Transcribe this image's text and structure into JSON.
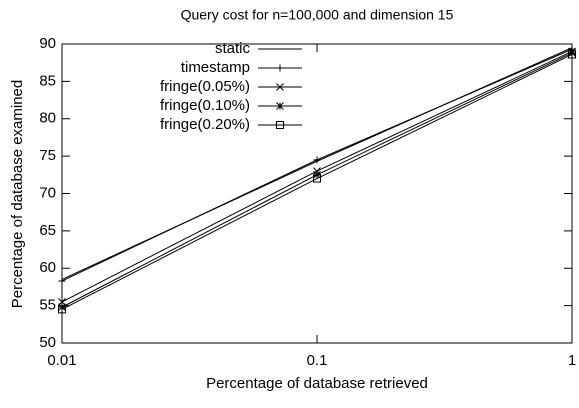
{
  "chart_data": {
    "type": "line",
    "title": "Query cost for n=100,000 and dimension 15",
    "x_label": "Percentage of database retrieved",
    "y_label": "Percentage of database examined",
    "x": [
      0.01,
      0.1,
      1
    ],
    "xscale": "log",
    "xlim": [
      0.01,
      1
    ],
    "xticks": [
      0.01,
      0.1,
      1
    ],
    "ylim": [
      50,
      90
    ],
    "yticks": [
      50,
      55,
      60,
      65,
      70,
      75,
      80,
      85,
      90
    ],
    "legend": "top-left",
    "series": [
      {
        "name": "static",
        "color": "#000000",
        "marker": "none",
        "values": [
          58.5,
          74.3,
          89.5
        ]
      },
      {
        "name": "timestamp",
        "color": "#000000",
        "marker": "plus",
        "values": [
          58.3,
          74.5,
          89.3
        ]
      },
      {
        "name": "fringe(0.05%)",
        "color": "#000000",
        "marker": "cross",
        "values": [
          55.5,
          73.0,
          89.0
        ]
      },
      {
        "name": "fringe(0.10%)",
        "color": "#000000",
        "marker": "star",
        "values": [
          54.8,
          72.5,
          88.8
        ]
      },
      {
        "name": "fringe(0.20%)",
        "color": "#000000",
        "marker": "square",
        "values": [
          54.5,
          72.0,
          88.6
        ]
      }
    ]
  }
}
